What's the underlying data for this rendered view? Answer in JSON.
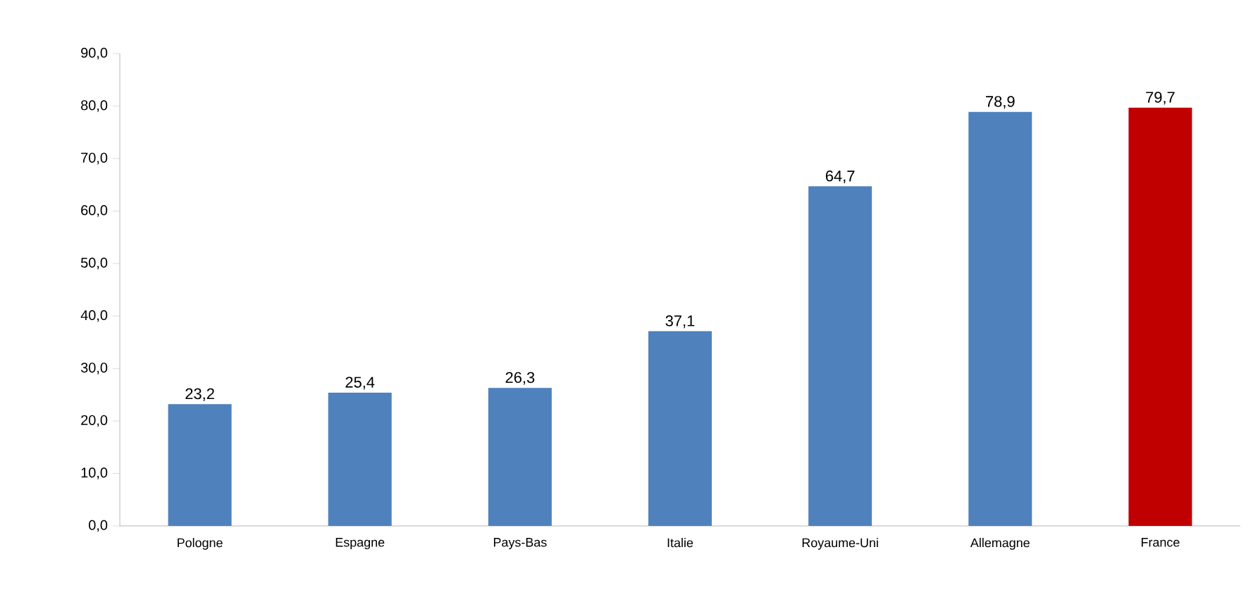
{
  "chart_data": {
    "type": "bar",
    "categories": [
      "Pologne",
      "Espagne",
      "Pays-Bas",
      "Italie",
      "Royaume-Uni",
      "Allemagne",
      "France"
    ],
    "values": [
      23.2,
      25.4,
      26.3,
      37.1,
      64.7,
      78.9,
      79.7
    ],
    "colors": [
      "#4f81bd",
      "#4f81bd",
      "#4f81bd",
      "#4f81bd",
      "#4f81bd",
      "#4f81bd",
      "#c00000"
    ],
    "value_labels": [
      "23,2",
      "25,4",
      "26,3",
      "37,1",
      "64,7",
      "78,9",
      "79,7"
    ],
    "ylim": [
      0,
      90
    ],
    "yticks": [
      {
        "value": 0,
        "label": "0,0"
      },
      {
        "value": 10,
        "label": "10,0"
      },
      {
        "value": 20,
        "label": "20,0"
      },
      {
        "value": 30,
        "label": "30,0"
      },
      {
        "value": 40,
        "label": "40,0"
      },
      {
        "value": 50,
        "label": "50,0"
      },
      {
        "value": 60,
        "label": "60,0"
      },
      {
        "value": 70,
        "label": "70,0"
      },
      {
        "value": 80,
        "label": "80,0"
      },
      {
        "value": 90,
        "label": "90,0"
      }
    ]
  }
}
